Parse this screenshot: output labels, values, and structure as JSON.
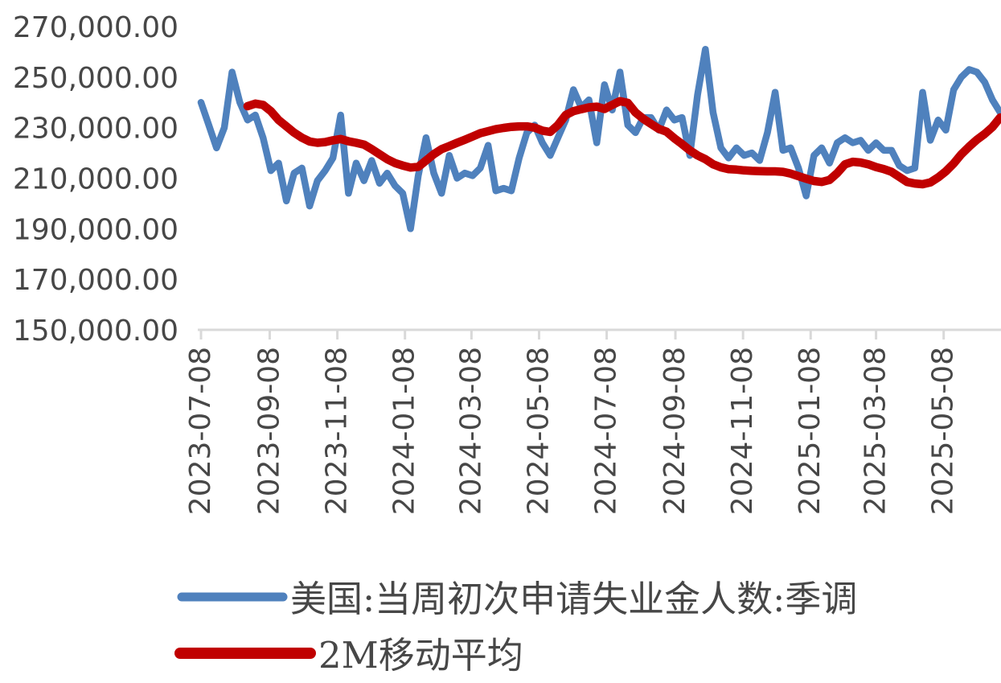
{
  "style": {
    "background": "#FFFFFF",
    "axis_color": "#D9D9D9",
    "label_color": "#474747"
  },
  "chart_data": {
    "type": "line",
    "title": "",
    "xlabel": "",
    "ylabel": "",
    "grid": false,
    "legend_position": "bottom-left",
    "ylim": [
      150000,
      270000
    ],
    "x_start_date": "2023-07-08",
    "x_step_days": 7,
    "y_ticks": [
      {
        "label": "270,000.00",
        "value": 270000
      },
      {
        "label": "250,000.00",
        "value": 250000
      },
      {
        "label": "230,000.00",
        "value": 230000
      },
      {
        "label": "210,000.00",
        "value": 210000
      },
      {
        "label": "190,000.00",
        "value": 190000
      },
      {
        "label": "170,000.00",
        "value": 170000
      },
      {
        "label": "150,000.00",
        "value": 150000
      }
    ],
    "x_ticks": [
      {
        "label": "2023-07-08",
        "week": 0
      },
      {
        "label": "2023-09-08",
        "week": 8.857
      },
      {
        "label": "2023-11-08",
        "week": 17.571
      },
      {
        "label": "2024-01-08",
        "week": 26.286
      },
      {
        "label": "2024-03-08",
        "week": 34.857
      },
      {
        "label": "2024-05-08",
        "week": 43.571
      },
      {
        "label": "2024-07-08",
        "week": 52.286
      },
      {
        "label": "2024-09-08",
        "week": 61.143
      },
      {
        "label": "2024-11-08",
        "week": 69.857
      },
      {
        "label": "2025-01-08",
        "week": 78.571
      },
      {
        "label": "2025-03-08",
        "week": 87.0
      },
      {
        "label": "2025-05-08",
        "week": 95.714
      }
    ],
    "series": [
      {
        "name": "美国:当周初次申请失业金人数:季调",
        "color": "#4F81BD",
        "line_width": 8.5,
        "values": [
          240000,
          231000,
          222000,
          230000,
          252000,
          240000,
          233000,
          235000,
          226000,
          213000,
          216000,
          201000,
          212000,
          214000,
          199000,
          209000,
          213000,
          218000,
          235000,
          204000,
          216000,
          209000,
          217000,
          208000,
          212000,
          207000,
          204000,
          190000,
          211000,
          226000,
          212000,
          204000,
          219000,
          210000,
          212000,
          211000,
          214000,
          223000,
          205000,
          206000,
          205000,
          218000,
          228000,
          231000,
          224000,
          219000,
          226000,
          233000,
          245000,
          238000,
          241000,
          224000,
          247000,
          237000,
          252000,
          231000,
          228000,
          234000,
          234000,
          229000,
          237000,
          233000,
          234000,
          219000,
          243000,
          261000,
          236000,
          222000,
          218000,
          222000,
          219000,
          220000,
          217000,
          228000,
          244000,
          221000,
          222000,
          214000,
          203000,
          219000,
          222000,
          216000,
          224000,
          226000,
          224000,
          225000,
          221000,
          224000,
          221000,
          221000,
          215000,
          213000,
          214000,
          244000,
          225000,
          233000,
          229000,
          245000,
          250000,
          253000,
          252000,
          248000,
          241000,
          236000
        ]
      },
      {
        "name": "2M移动平均",
        "color": "#C00000",
        "line_width": 10.5,
        "values": [
          null,
          null,
          null,
          null,
          null,
          null,
          238500,
          239500,
          239000,
          236500,
          233000,
          230500,
          228000,
          226000,
          224500,
          224000,
          224300,
          225000,
          225500,
          224600,
          224000,
          223300,
          221500,
          219500,
          217500,
          216000,
          215000,
          214200,
          214500,
          217000,
          219500,
          221500,
          222700,
          224000,
          225200,
          226500,
          227800,
          228600,
          229400,
          229900,
          230300,
          230500,
          230500,
          230000,
          228800,
          228300,
          231000,
          235000,
          236500,
          237300,
          238000,
          238300,
          237400,
          239000,
          240500,
          239800,
          236000,
          233500,
          231500,
          229500,
          228400,
          225800,
          223500,
          221000,
          219000,
          217500,
          215500,
          214300,
          213600,
          213400,
          213100,
          212900,
          212800,
          212700,
          212700,
          212500,
          211800,
          210800,
          209800,
          208900,
          208500,
          209300,
          212000,
          215500,
          216500,
          216200,
          215500,
          214400,
          213600,
          212500,
          210500,
          208500,
          207900,
          207600,
          208300,
          210300,
          212700,
          215800,
          219500,
          222500,
          225200,
          227500,
          230200,
          234000
        ]
      }
    ]
  },
  "legend": {
    "items": [
      {
        "label": "美国:当周初次申请失业金人数:季调",
        "color": "#4F81BD"
      },
      {
        "label": "2M移动平均",
        "color": "#C00000"
      }
    ]
  }
}
